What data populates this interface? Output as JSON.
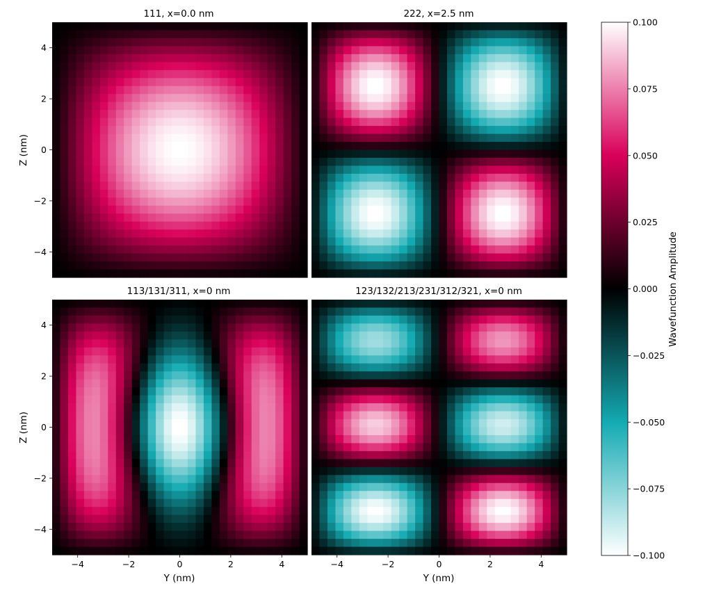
{
  "chart_data": {
    "type": "heatmap",
    "colormap": {
      "label": "Wavefunction Amplitude",
      "range": [
        -0.1,
        0.1
      ],
      "ticks": [
        "0.100",
        "0.075",
        "0.050",
        "0.025",
        "0.000",
        "−0.025",
        "−0.050",
        "−0.075",
        "−0.100"
      ],
      "tick_values": [
        0.1,
        0.075,
        0.05,
        0.025,
        0.0,
        -0.025,
        -0.05,
        -0.075,
        -0.1
      ],
      "stops": [
        {
          "value": -0.1,
          "color": "#ffffff"
        },
        {
          "value": -0.05,
          "color": "#14aab2"
        },
        {
          "value": 0.0,
          "color": "#000000"
        },
        {
          "value": 0.05,
          "color": "#d9005a"
        },
        {
          "value": 0.1,
          "color": "#ffffff"
        }
      ]
    },
    "grid": 32,
    "extent": [
      -5,
      5
    ],
    "xlabel": "Y (nm)",
    "ylabel": "Z (nm)",
    "x_ticks": [
      -4,
      -2,
      0,
      2,
      4
    ],
    "y_ticks": [
      -4,
      -2,
      0,
      2,
      4
    ],
    "x_tick_labels": [
      "−4",
      "−2",
      "0",
      "2",
      "4"
    ],
    "y_tick_labels": [
      "−4",
      "−2",
      "0",
      "2",
      "4"
    ],
    "panels": [
      {
        "title": "111, x=0.0 nm",
        "state": "111",
        "peak": 0.1,
        "show_ylabel": true,
        "show_xlabel": false
      },
      {
        "title": "222, x=2.5 nm",
        "state": "222",
        "peak": 0.1,
        "show_ylabel": false,
        "show_xlabel": false
      },
      {
        "title": "113/131/311, x=0 nm",
        "state": "113",
        "peak": 0.1,
        "show_ylabel": true,
        "show_xlabel": true
      },
      {
        "title": "123/132/213/231/312/321, x=0 nm",
        "state": "123",
        "peak": 0.1,
        "show_ylabel": false,
        "show_xlabel": true
      }
    ]
  }
}
